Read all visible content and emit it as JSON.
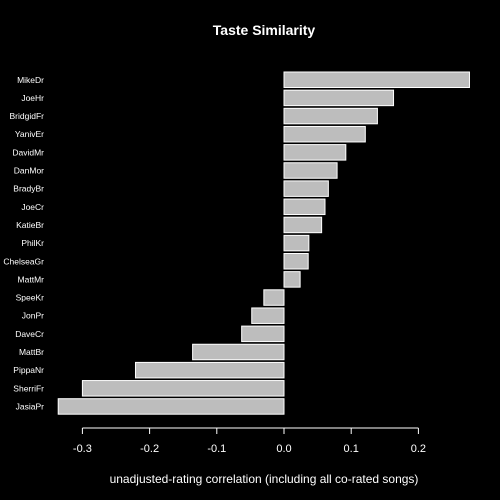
{
  "chart_data": {
    "type": "bar",
    "orientation": "horizontal",
    "title": "Taste Similarity",
    "xlabel": "unadjusted-rating correlation (including all co-rated songs)",
    "ylabel": "",
    "xlim": [
      -0.34,
      0.28
    ],
    "xticks": [
      -0.3,
      -0.2,
      -0.1,
      0.0,
      0.1,
      0.2
    ],
    "xtick_labels": [
      "-0.3",
      "-0.2",
      "-0.1",
      "0.0",
      "0.1",
      "0.2"
    ],
    "categories": [
      "MikeDr",
      "JoeHr",
      "BridgidFr",
      "YanivEr",
      "DavidMr",
      "DanMor",
      "BradyBr",
      "JoeCr",
      "KatieBr",
      "PhilKr",
      "ChelseaGr",
      "MattMr",
      "SpeeKr",
      "JonPr",
      "DaveCr",
      "MattBr",
      "PippaNr",
      "SherriFr",
      "JasiaPr"
    ],
    "values": [
      0.276,
      0.163,
      0.139,
      0.121,
      0.092,
      0.079,
      0.066,
      0.061,
      0.056,
      0.037,
      0.036,
      0.024,
      -0.03,
      -0.048,
      -0.063,
      -0.136,
      -0.221,
      -0.3,
      -0.336
    ],
    "bar_color": "#bdbdbd",
    "background": "#000000",
    "grid": false
  }
}
